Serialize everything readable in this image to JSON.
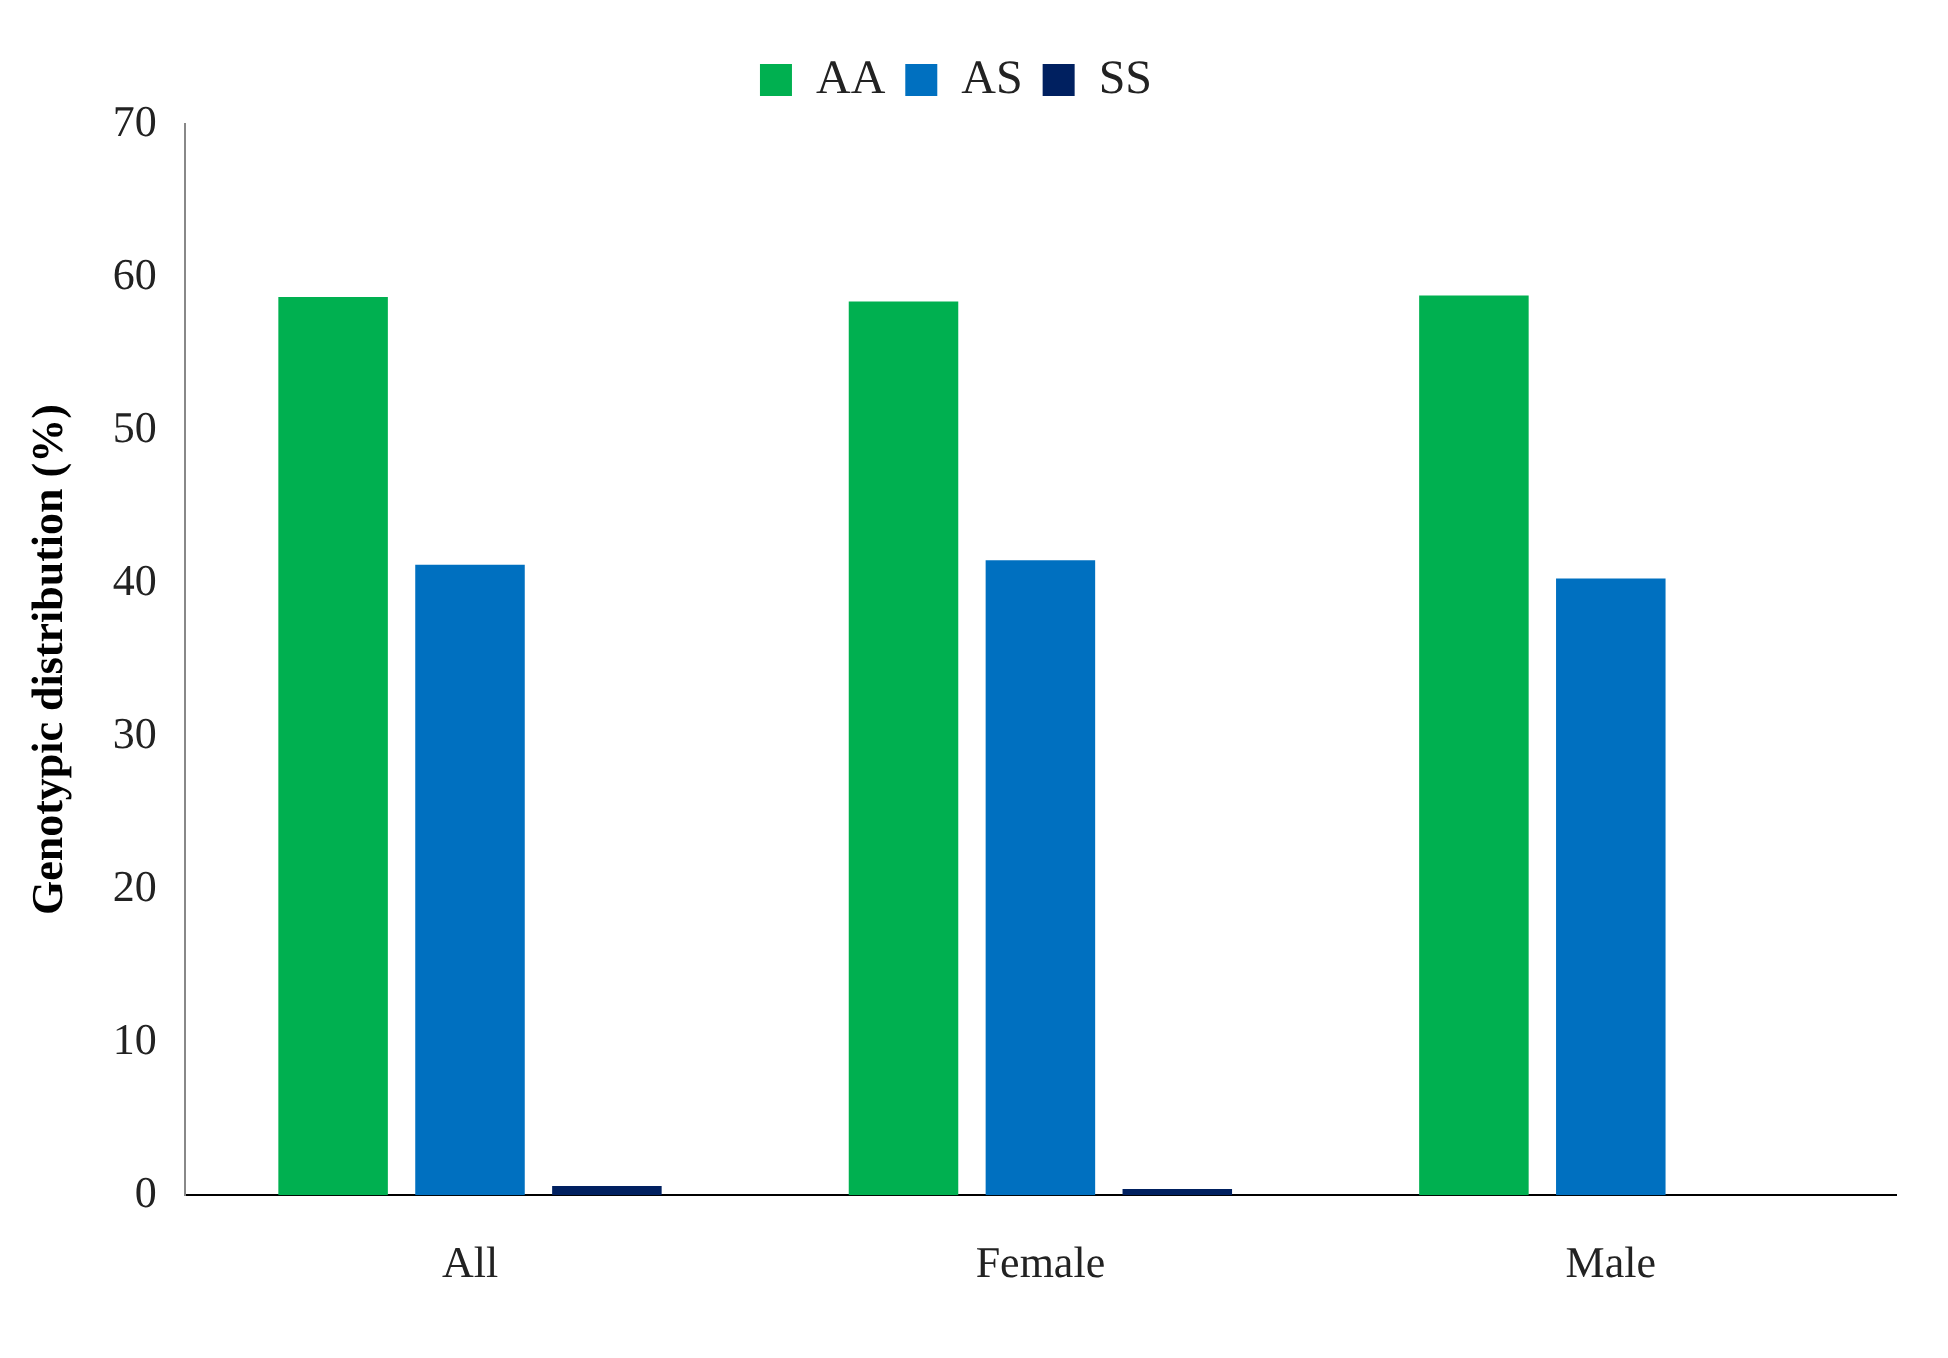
{
  "chart_data": {
    "type": "bar",
    "ylabel": "Genotypic distribution (%)",
    "categories": [
      "All",
      "Female",
      "Male"
    ],
    "series": [
      {
        "name": "AA",
        "color": "#00b050",
        "values": [
          58.7,
          58.4,
          58.8
        ]
      },
      {
        "name": "AS",
        "color": "#0070c0",
        "values": [
          41.2,
          41.5,
          40.3
        ]
      },
      {
        "name": "SS",
        "color": "#002060",
        "values": [
          0.6,
          0.4,
          null
        ]
      }
    ],
    "ylim": [
      0,
      70
    ],
    "yticks": [
      0,
      10,
      20,
      30,
      40,
      50,
      60,
      70
    ],
    "grid": false,
    "legend": "top"
  }
}
